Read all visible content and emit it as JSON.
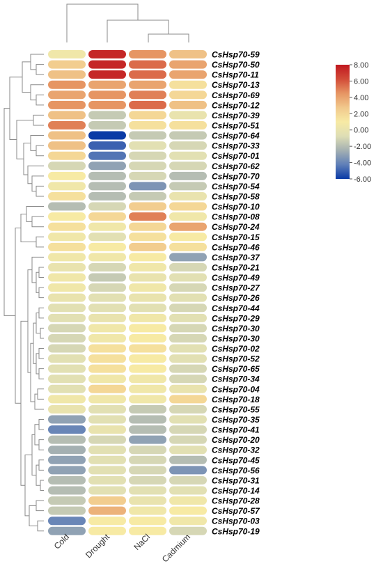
{
  "chart_data": {
    "type": "heatmap",
    "columns": [
      "Cold",
      "Drought",
      "NaCl",
      "Cadmium"
    ],
    "rows": [
      "CsHsp70-59",
      "CsHsp70-50",
      "CsHsp70-11",
      "CsHsp70-13",
      "CsHsp70-69",
      "CsHsp70-12",
      "CsHsp70-39",
      "CsHsp70-51",
      "CsHsp70-64",
      "CsHsp70-33",
      "CsHsp70-01",
      "CsHsp70-62",
      "CsHsp70-70",
      "CsHsp70-54",
      "CsHsp70-58",
      "CsHsp70-10",
      "CsHsp70-08",
      "CsHsp70-24",
      "CsHsp70-15",
      "CsHsp70-46",
      "CsHsp70-37",
      "CsHsp70-21",
      "CsHsp70-49",
      "CsHsp70-27",
      "CsHsp70-26",
      "CsHsp70-44",
      "CsHsp70-29",
      "CsHsp70-30",
      "CsHsp70-30",
      "CsHsp70-02",
      "CsHsp70-52",
      "CsHsp70-65",
      "CsHsp70-34",
      "CsHsp70-04",
      "CsHsp70-18",
      "CsHsp70-55",
      "CsHsp70-35",
      "CsHsp70-41",
      "CsHsp70-20",
      "CsHsp70-32",
      "CsHsp70-45",
      "CsHsp70-56",
      "CsHsp70-31",
      "CsHsp70-14",
      "CsHsp70-28",
      "CsHsp70-57",
      "CsHsp70-03",
      "CsHsp70-19"
    ],
    "values": [
      [
        0.5,
        7.5,
        4.5,
        3.0
      ],
      [
        2.5,
        7.5,
        5.5,
        4.0
      ],
      [
        3.0,
        7.5,
        5.5,
        4.0
      ],
      [
        4.5,
        4.0,
        4.0,
        1.5
      ],
      [
        4.0,
        4.5,
        5.0,
        2.0
      ],
      [
        4.5,
        4.5,
        5.5,
        3.0
      ],
      [
        3.0,
        -1.5,
        2.0,
        0.0
      ],
      [
        5.0,
        -1.5,
        1.5,
        1.5
      ],
      [
        3.0,
        -6.0,
        -1.5,
        -1.5
      ],
      [
        3.0,
        -5.0,
        -0.5,
        -1.0
      ],
      [
        2.0,
        -4.5,
        -1.0,
        -0.5
      ],
      [
        -1.0,
        -3.0,
        -1.0,
        -1.0
      ],
      [
        1.0,
        -2.0,
        -1.0,
        -2.0
      ],
      [
        0.5,
        -2.0,
        -3.5,
        -1.5
      ],
      [
        1.5,
        -2.0,
        -1.5,
        0.0
      ],
      [
        -2.0,
        -1.0,
        2.5,
        2.0
      ],
      [
        1.0,
        2.0,
        5.0,
        0.5
      ],
      [
        1.5,
        0.5,
        2.0,
        4.0
      ],
      [
        0.5,
        -0.5,
        1.5,
        1.0
      ],
      [
        1.5,
        1.0,
        2.5,
        1.5
      ],
      [
        0.5,
        0.5,
        1.0,
        -3.0
      ],
      [
        0.0,
        -1.0,
        0.5,
        -1.0
      ],
      [
        0.5,
        -1.5,
        0.0,
        -0.5
      ],
      [
        0.5,
        -1.0,
        0.5,
        -1.0
      ],
      [
        0.0,
        -0.5,
        0.0,
        -0.5
      ],
      [
        -0.5,
        -0.5,
        -0.5,
        -1.0
      ],
      [
        -0.5,
        0.0,
        0.5,
        -0.5
      ],
      [
        -1.0,
        0.5,
        1.0,
        -1.0
      ],
      [
        -1.0,
        0.5,
        1.0,
        -1.0
      ],
      [
        -1.0,
        1.5,
        1.5,
        -0.5
      ],
      [
        -0.5,
        1.5,
        1.0,
        -0.5
      ],
      [
        -0.5,
        1.5,
        1.0,
        -1.0
      ],
      [
        -0.5,
        0.5,
        0.5,
        -1.0
      ],
      [
        -0.5,
        2.0,
        0.5,
        0.0
      ],
      [
        0.5,
        0.5,
        0.5,
        2.0
      ],
      [
        0.0,
        -0.5,
        -1.5,
        -1.0
      ],
      [
        -3.0,
        -0.5,
        -2.0,
        -0.5
      ],
      [
        -4.0,
        0.0,
        -2.0,
        -1.0
      ],
      [
        -2.0,
        -1.0,
        -3.0,
        -1.0
      ],
      [
        -2.5,
        -0.5,
        -1.0,
        -0.5
      ],
      [
        -3.0,
        -0.5,
        -1.0,
        -2.0
      ],
      [
        -3.0,
        -0.5,
        -1.0,
        -3.5
      ],
      [
        -2.0,
        -0.5,
        -1.0,
        -1.0
      ],
      [
        -2.0,
        -0.5,
        -0.5,
        -0.5
      ],
      [
        -1.5,
        2.5,
        0.0,
        0.5
      ],
      [
        -1.5,
        3.5,
        0.5,
        1.0
      ],
      [
        -4.0,
        1.0,
        1.0,
        0.5
      ],
      [
        -3.0,
        1.0,
        1.0,
        -1.0
      ]
    ],
    "colorbar": {
      "min": -6.0,
      "max": 8.0,
      "ticks": [
        "8.00",
        "6.00",
        "4.00",
        "2.00",
        "0.00",
        "-2.00",
        "-4.00",
        "-6.00"
      ],
      "tick_values": [
        8,
        6,
        4,
        2,
        0,
        -2,
        -4,
        -6
      ],
      "colors": [
        "#0a3aa6",
        "#5f7fb8",
        "#a4b0b2",
        "#dedeb5",
        "#f7eaa4",
        "#f1c88c",
        "#e69563",
        "#d24b38",
        "#c0181f"
      ]
    },
    "dendrogram": "left and top hierarchical clustering trees",
    "legend_position": "top-right"
  }
}
